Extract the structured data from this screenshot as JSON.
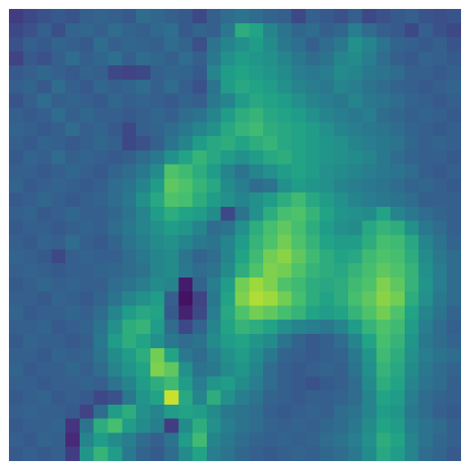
{
  "chart_data": {
    "type": "heatmap",
    "colormap": "viridis",
    "rows": 32,
    "cols": 32,
    "grid": false,
    "axes_visible": false,
    "zlim": [
      0,
      1
    ],
    "palette": [
      "#440154",
      "#46327e",
      "#365c8d",
      "#277f8e",
      "#1fa187",
      "#4ac16d",
      "#a0da39",
      "#fde725"
    ],
    "dominant_colors": [
      "#3b528b",
      "#2c728e",
      "#21918c",
      "#5ec962",
      "#a7d53a"
    ],
    "values": [
      [
        0.18,
        0.22,
        0.25,
        0.28,
        0.26,
        0.3,
        0.32,
        0.3,
        0.28,
        0.35,
        0.33,
        0.3,
        0.28,
        0.22,
        0.3,
        0.35,
        0.38,
        0.35,
        0.32,
        0.3,
        0.22,
        0.3,
        0.28,
        0.25,
        0.3,
        0.22,
        0.25,
        0.28,
        0.3,
        0.26,
        0.24,
        0.26
      ],
      [
        0.22,
        0.25,
        0.3,
        0.24,
        0.32,
        0.33,
        0.3,
        0.35,
        0.32,
        0.3,
        0.34,
        0.36,
        0.28,
        0.32,
        0.3,
        0.4,
        0.62,
        0.58,
        0.45,
        0.38,
        0.33,
        0.35,
        0.3,
        0.33,
        0.42,
        0.35,
        0.3,
        0.28,
        0.22,
        0.3,
        0.25,
        0.22
      ],
      [
        0.25,
        0.3,
        0.28,
        0.32,
        0.3,
        0.28,
        0.35,
        0.3,
        0.33,
        0.32,
        0.3,
        0.35,
        0.32,
        0.24,
        0.38,
        0.45,
        0.5,
        0.55,
        0.48,
        0.4,
        0.36,
        0.3,
        0.35,
        0.4,
        0.5,
        0.45,
        0.38,
        0.32,
        0.3,
        0.28,
        0.3,
        0.26
      ],
      [
        0.2,
        0.28,
        0.25,
        0.3,
        0.35,
        0.3,
        0.33,
        0.36,
        0.3,
        0.35,
        0.33,
        0.3,
        0.35,
        0.3,
        0.4,
        0.5,
        0.55,
        0.52,
        0.5,
        0.45,
        0.4,
        0.35,
        0.38,
        0.45,
        0.48,
        0.42,
        0.35,
        0.3,
        0.28,
        0.32,
        0.3,
        0.28
      ],
      [
        0.28,
        0.3,
        0.33,
        0.3,
        0.28,
        0.32,
        0.3,
        0.22,
        0.2,
        0.22,
        0.3,
        0.33,
        0.32,
        0.28,
        0.45,
        0.55,
        0.58,
        0.55,
        0.52,
        0.48,
        0.42,
        0.4,
        0.42,
        0.48,
        0.45,
        0.4,
        0.38,
        0.35,
        0.3,
        0.3,
        0.28,
        0.3
      ],
      [
        0.3,
        0.32,
        0.28,
        0.35,
        0.3,
        0.28,
        0.33,
        0.3,
        0.32,
        0.35,
        0.3,
        0.35,
        0.3,
        0.25,
        0.38,
        0.55,
        0.6,
        0.58,
        0.55,
        0.5,
        0.45,
        0.42,
        0.4,
        0.45,
        0.42,
        0.38,
        0.35,
        0.32,
        0.3,
        0.28,
        0.3,
        0.32
      ],
      [
        0.26,
        0.3,
        0.35,
        0.3,
        0.32,
        0.3,
        0.28,
        0.33,
        0.3,
        0.32,
        0.3,
        0.28,
        0.32,
        0.3,
        0.4,
        0.45,
        0.55,
        0.6,
        0.58,
        0.55,
        0.5,
        0.45,
        0.42,
        0.4,
        0.45,
        0.4,
        0.38,
        0.35,
        0.32,
        0.3,
        0.28,
        0.3
      ],
      [
        0.3,
        0.28,
        0.3,
        0.35,
        0.3,
        0.33,
        0.3,
        0.3,
        0.28,
        0.3,
        0.33,
        0.3,
        0.35,
        0.38,
        0.45,
        0.55,
        0.62,
        0.65,
        0.6,
        0.58,
        0.55,
        0.5,
        0.45,
        0.42,
        0.4,
        0.42,
        0.35,
        0.33,
        0.3,
        0.32,
        0.3,
        0.28
      ],
      [
        0.32,
        0.3,
        0.28,
        0.3,
        0.35,
        0.3,
        0.32,
        0.28,
        0.22,
        0.3,
        0.32,
        0.35,
        0.4,
        0.45,
        0.5,
        0.6,
        0.65,
        0.68,
        0.62,
        0.6,
        0.58,
        0.55,
        0.5,
        0.45,
        0.42,
        0.4,
        0.38,
        0.35,
        0.32,
        0.3,
        0.28,
        0.3
      ],
      [
        0.3,
        0.28,
        0.32,
        0.3,
        0.28,
        0.3,
        0.33,
        0.3,
        0.22,
        0.25,
        0.3,
        0.38,
        0.45,
        0.55,
        0.6,
        0.62,
        0.58,
        0.62,
        0.65,
        0.6,
        0.58,
        0.55,
        0.52,
        0.5,
        0.45,
        0.42,
        0.4,
        0.38,
        0.33,
        0.3,
        0.32,
        0.3
      ],
      [
        0.28,
        0.32,
        0.3,
        0.35,
        0.3,
        0.32,
        0.3,
        0.28,
        0.3,
        0.35,
        0.4,
        0.5,
        0.58,
        0.65,
        0.6,
        0.55,
        0.5,
        0.55,
        0.6,
        0.62,
        0.58,
        0.55,
        0.52,
        0.5,
        0.48,
        0.45,
        0.4,
        0.35,
        0.32,
        0.3,
        0.3,
        0.28
      ],
      [
        0.3,
        0.3,
        0.28,
        0.3,
        0.33,
        0.3,
        0.28,
        0.32,
        0.35,
        0.4,
        0.48,
        0.72,
        0.68,
        0.62,
        0.55,
        0.45,
        0.38,
        0.45,
        0.5,
        0.55,
        0.58,
        0.55,
        0.5,
        0.48,
        0.45,
        0.42,
        0.4,
        0.38,
        0.35,
        0.3,
        0.28,
        0.3
      ],
      [
        0.32,
        0.28,
        0.3,
        0.32,
        0.3,
        0.28,
        0.3,
        0.35,
        0.38,
        0.45,
        0.55,
        0.75,
        0.72,
        0.65,
        0.6,
        0.48,
        0.42,
        0.35,
        0.38,
        0.5,
        0.55,
        0.52,
        0.5,
        0.45,
        0.42,
        0.4,
        0.38,
        0.35,
        0.32,
        0.33,
        0.3,
        0.28
      ],
      [
        0.28,
        0.3,
        0.33,
        0.3,
        0.28,
        0.3,
        0.32,
        0.35,
        0.4,
        0.5,
        0.6,
        0.72,
        0.7,
        0.62,
        0.55,
        0.5,
        0.45,
        0.5,
        0.55,
        0.62,
        0.68,
        0.6,
        0.55,
        0.5,
        0.45,
        0.42,
        0.4,
        0.38,
        0.35,
        0.3,
        0.3,
        0.3
      ],
      [
        0.3,
        0.32,
        0.28,
        0.3,
        0.33,
        0.3,
        0.3,
        0.33,
        0.38,
        0.45,
        0.55,
        0.62,
        0.58,
        0.55,
        0.48,
        0.22,
        0.38,
        0.5,
        0.62,
        0.7,
        0.72,
        0.65,
        0.58,
        0.52,
        0.5,
        0.48,
        0.58,
        0.45,
        0.4,
        0.35,
        0.32,
        0.3
      ],
      [
        0.28,
        0.3,
        0.3,
        0.28,
        0.3,
        0.32,
        0.3,
        0.35,
        0.4,
        0.45,
        0.5,
        0.55,
        0.52,
        0.45,
        0.35,
        0.38,
        0.5,
        0.62,
        0.7,
        0.75,
        0.7,
        0.62,
        0.55,
        0.5,
        0.48,
        0.6,
        0.65,
        0.62,
        0.5,
        0.4,
        0.35,
        0.3
      ],
      [
        0.3,
        0.28,
        0.32,
        0.3,
        0.35,
        0.3,
        0.28,
        0.32,
        0.38,
        0.42,
        0.48,
        0.5,
        0.45,
        0.4,
        0.38,
        0.45,
        0.55,
        0.65,
        0.72,
        0.78,
        0.72,
        0.65,
        0.58,
        0.55,
        0.55,
        0.62,
        0.7,
        0.68,
        0.6,
        0.45,
        0.38,
        0.32
      ],
      [
        0.32,
        0.3,
        0.28,
        0.22,
        0.3,
        0.32,
        0.3,
        0.3,
        0.35,
        0.4,
        0.45,
        0.48,
        0.38,
        0.32,
        0.35,
        0.45,
        0.58,
        0.68,
        0.78,
        0.82,
        0.75,
        0.68,
        0.62,
        0.58,
        0.6,
        0.68,
        0.72,
        0.7,
        0.62,
        0.48,
        0.4,
        0.35
      ],
      [
        0.3,
        0.32,
        0.3,
        0.28,
        0.3,
        0.3,
        0.32,
        0.33,
        0.35,
        0.38,
        0.45,
        0.48,
        0.4,
        0.35,
        0.38,
        0.48,
        0.62,
        0.72,
        0.8,
        0.78,
        0.72,
        0.65,
        0.62,
        0.6,
        0.65,
        0.7,
        0.75,
        0.72,
        0.65,
        0.5,
        0.42,
        0.35
      ],
      [
        0.28,
        0.3,
        0.33,
        0.3,
        0.32,
        0.3,
        0.3,
        0.35,
        0.38,
        0.42,
        0.48,
        0.45,
        0.08,
        0.32,
        0.42,
        0.55,
        0.78,
        0.85,
        0.8,
        0.72,
        0.68,
        0.62,
        0.6,
        0.62,
        0.68,
        0.72,
        0.8,
        0.75,
        0.65,
        0.52,
        0.42,
        0.35
      ],
      [
        0.3,
        0.3,
        0.28,
        0.32,
        0.3,
        0.28,
        0.32,
        0.38,
        0.45,
        0.5,
        0.55,
        0.3,
        0.05,
        0.2,
        0.4,
        0.58,
        0.8,
        0.88,
        0.85,
        0.78,
        0.7,
        0.62,
        0.58,
        0.62,
        0.7,
        0.75,
        0.82,
        0.78,
        0.62,
        0.5,
        0.4,
        0.35
      ],
      [
        0.32,
        0.28,
        0.3,
        0.3,
        0.33,
        0.3,
        0.35,
        0.45,
        0.55,
        0.6,
        0.58,
        0.28,
        0.1,
        0.22,
        0.42,
        0.6,
        0.72,
        0.78,
        0.75,
        0.7,
        0.65,
        0.58,
        0.55,
        0.58,
        0.65,
        0.72,
        0.78,
        0.72,
        0.58,
        0.45,
        0.38,
        0.32
      ],
      [
        0.3,
        0.3,
        0.32,
        0.28,
        0.3,
        0.32,
        0.38,
        0.5,
        0.62,
        0.65,
        0.55,
        0.35,
        0.22,
        0.32,
        0.45,
        0.58,
        0.65,
        0.62,
        0.58,
        0.5,
        0.45,
        0.42,
        0.4,
        0.45,
        0.55,
        0.65,
        0.72,
        0.68,
        0.55,
        0.42,
        0.35,
        0.3
      ],
      [
        0.28,
        0.32,
        0.3,
        0.3,
        0.28,
        0.3,
        0.4,
        0.55,
        0.62,
        0.58,
        0.5,
        0.4,
        0.35,
        0.38,
        0.48,
        0.55,
        0.58,
        0.52,
        0.48,
        0.38,
        0.32,
        0.28,
        0.3,
        0.35,
        0.45,
        0.58,
        0.7,
        0.65,
        0.52,
        0.4,
        0.35,
        0.32
      ],
      [
        0.3,
        0.3,
        0.28,
        0.32,
        0.3,
        0.32,
        0.38,
        0.48,
        0.55,
        0.62,
        0.78,
        0.58,
        0.4,
        0.35,
        0.42,
        0.5,
        0.55,
        0.48,
        0.4,
        0.32,
        0.3,
        0.28,
        0.3,
        0.32,
        0.4,
        0.52,
        0.68,
        0.62,
        0.5,
        0.42,
        0.38,
        0.35
      ],
      [
        0.32,
        0.28,
        0.3,
        0.3,
        0.33,
        0.3,
        0.35,
        0.45,
        0.52,
        0.58,
        0.8,
        0.75,
        0.5,
        0.38,
        0.4,
        0.48,
        0.52,
        0.45,
        0.35,
        0.3,
        0.28,
        0.3,
        0.32,
        0.3,
        0.38,
        0.5,
        0.65,
        0.6,
        0.48,
        0.4,
        0.35,
        0.32
      ],
      [
        0.3,
        0.3,
        0.28,
        0.3,
        0.3,
        0.32,
        0.3,
        0.38,
        0.45,
        0.55,
        0.62,
        0.68,
        0.55,
        0.42,
        0.52,
        0.55,
        0.48,
        0.42,
        0.35,
        0.3,
        0.28,
        0.25,
        0.28,
        0.3,
        0.35,
        0.48,
        0.62,
        0.58,
        0.45,
        0.38,
        0.35,
        0.3
      ],
      [
        0.28,
        0.3,
        0.32,
        0.28,
        0.3,
        0.28,
        0.22,
        0.25,
        0.4,
        0.52,
        0.58,
        0.92,
        0.6,
        0.45,
        0.62,
        0.5,
        0.42,
        0.38,
        0.32,
        0.3,
        0.28,
        0.3,
        0.3,
        0.32,
        0.35,
        0.45,
        0.58,
        0.55,
        0.42,
        0.35,
        0.32,
        0.3
      ],
      [
        0.3,
        0.32,
        0.3,
        0.3,
        0.28,
        0.2,
        0.35,
        0.55,
        0.62,
        0.5,
        0.45,
        0.55,
        0.58,
        0.55,
        0.48,
        0.4,
        0.38,
        0.35,
        0.3,
        0.28,
        0.3,
        0.32,
        0.3,
        0.35,
        0.38,
        0.45,
        0.55,
        0.52,
        0.4,
        0.35,
        0.3,
        0.28
      ],
      [
        0.28,
        0.3,
        0.3,
        0.32,
        0.15,
        0.38,
        0.62,
        0.7,
        0.55,
        0.48,
        0.42,
        0.18,
        0.48,
        0.62,
        0.5,
        0.42,
        0.38,
        0.35,
        0.32,
        0.3,
        0.32,
        0.3,
        0.33,
        0.35,
        0.4,
        0.48,
        0.58,
        0.55,
        0.42,
        0.38,
        0.35,
        0.3
      ],
      [
        0.3,
        0.28,
        0.32,
        0.3,
        0.12,
        0.45,
        0.55,
        0.48,
        0.42,
        0.35,
        0.3,
        0.38,
        0.55,
        0.68,
        0.45,
        0.4,
        0.35,
        0.32,
        0.3,
        0.32,
        0.3,
        0.32,
        0.35,
        0.38,
        0.42,
        0.5,
        0.62,
        0.58,
        0.45,
        0.38,
        0.33,
        0.3
      ],
      [
        0.28,
        0.3,
        0.28,
        0.3,
        0.18,
        0.52,
        0.65,
        0.55,
        0.4,
        0.32,
        0.28,
        0.35,
        0.48,
        0.58,
        0.42,
        0.38,
        0.33,
        0.3,
        0.28,
        0.3,
        0.32,
        0.3,
        0.33,
        0.35,
        0.4,
        0.48,
        0.6,
        0.55,
        0.45,
        0.35,
        0.32,
        0.28
      ]
    ]
  }
}
